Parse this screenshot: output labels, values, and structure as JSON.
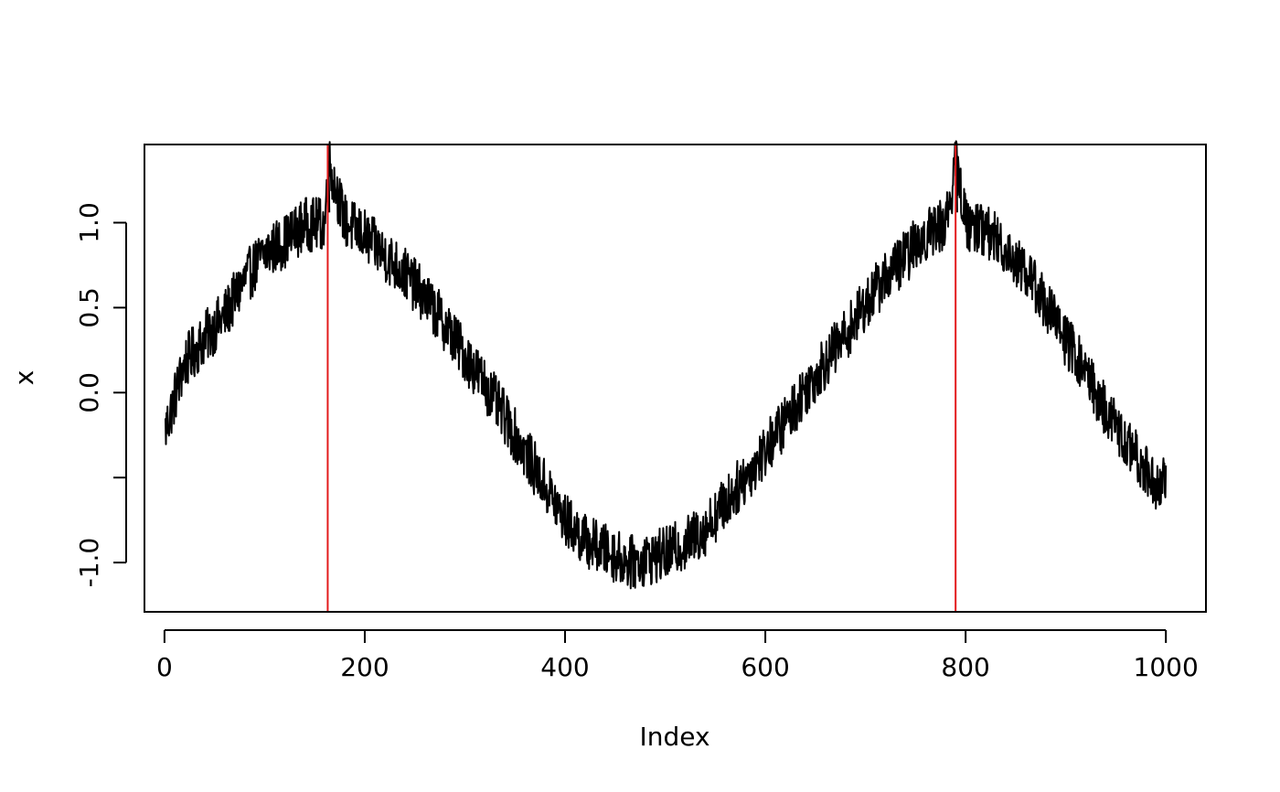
{
  "chart_data": {
    "type": "line",
    "title": "",
    "xlabel": "Index",
    "ylabel": "x",
    "xlim": [
      -20,
      1040
    ],
    "ylim": [
      -1.29,
      1.46
    ],
    "x_ticks": [
      0,
      200,
      400,
      600,
      800,
      1000
    ],
    "x_tick_labels": [
      "0",
      "200",
      "400",
      "600",
      "800",
      "1000"
    ],
    "y_ticks": [
      -1.0,
      -0.5,
      0.0,
      0.5,
      1.0
    ],
    "y_tick_labels": [
      "-1.0",
      "",
      "0.0",
      "0.5",
      "1.0"
    ],
    "grid": false,
    "legend": "none",
    "series": [
      {
        "color": "#000000",
        "x": [
          1,
          20,
          40,
          60,
          80,
          100,
          120,
          140,
          160,
          164,
          180,
          200,
          220,
          240,
          260,
          280,
          300,
          320,
          340,
          360,
          380,
          400,
          420,
          440,
          460,
          470,
          480,
          500,
          520,
          540,
          560,
          580,
          600,
          620,
          640,
          660,
          680,
          700,
          720,
          740,
          760,
          780,
          791,
          800,
          820,
          840,
          860,
          880,
          900,
          920,
          940,
          960,
          980,
          990,
          1000
        ],
        "y": [
          -0.22,
          0.17,
          0.32,
          0.45,
          0.66,
          0.82,
          0.89,
          0.99,
          0.99,
          1.36,
          1.01,
          0.92,
          0.81,
          0.7,
          0.56,
          0.4,
          0.22,
          0.05,
          -0.15,
          -0.35,
          -0.55,
          -0.75,
          -0.87,
          -0.93,
          -0.99,
          -1.0,
          -0.98,
          -0.95,
          -0.89,
          -0.8,
          -0.65,
          -0.5,
          -0.34,
          -0.17,
          0.02,
          0.18,
          0.34,
          0.52,
          0.68,
          0.8,
          0.93,
          1.0,
          1.36,
          1.0,
          0.96,
          0.84,
          0.72,
          0.52,
          0.31,
          0.12,
          -0.11,
          -0.3,
          -0.45,
          -0.55,
          -0.5
        ]
      }
    ],
    "vlines": [
      {
        "x": 163,
        "color": "#e31a1c"
      },
      {
        "x": 790,
        "color": "#e31a1c"
      }
    ]
  }
}
